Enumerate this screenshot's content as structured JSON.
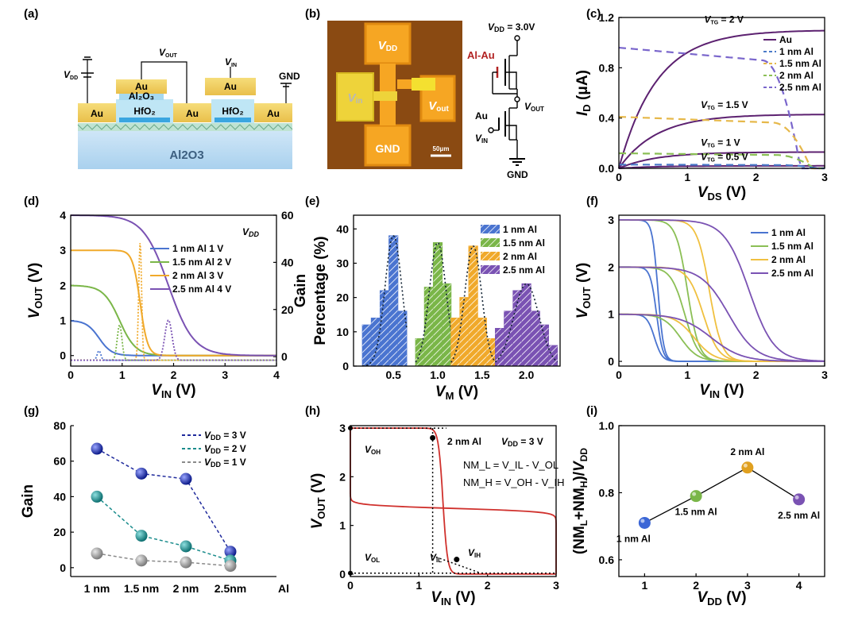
{
  "panel_labels": {
    "a": "(a)",
    "b": "(b)",
    "c": "(c)",
    "d": "(d)",
    "e": "(e)",
    "f": "(f)",
    "g": "(g)",
    "h": "(h)",
    "i": "(i)"
  },
  "schematic_a": {
    "vdd": "V",
    "vdd_sub": "DD",
    "vout": "V",
    "vout_sub": "OUT",
    "vin": "V",
    "vin_sub": "IN",
    "gnd": "GND",
    "au": "Au",
    "al2o3_top": "Al₂O₃",
    "hfo2": "HfO₂",
    "al2o3_sub": "Al2O3"
  },
  "micrograph_b": {
    "vdd": "V",
    "vdd_sub": "DD",
    "vin": "V",
    "vin_sub": "in",
    "vout": "V",
    "vout_sub": "out",
    "gnd": "GND",
    "scale": "50μm"
  },
  "circuit_b": {
    "vdd_label": "V",
    "vdd_sub": "DD",
    "vdd_val": " = 3.0V",
    "alau": "Al-Au",
    "vout": "V",
    "vout_sub": "OUT",
    "au": "Au",
    "vin": "V",
    "vin_sub": "IN",
    "gnd": "GND"
  },
  "chart_data": [
    {
      "id": "c",
      "type": "line",
      "title": "",
      "xlabel": "V",
      "xlabel_sub": "DS",
      "xlabel_unit": " (V)",
      "ylabel": "I",
      "ylabel_sub": "D",
      "ylabel_unit": " (μA)",
      "xlim": [
        0,
        3
      ],
      "ylim": [
        0,
        1.2
      ],
      "xticks": [
        "0",
        "1",
        "2",
        "3"
      ],
      "yticks": [
        "0.0",
        "0.4",
        "0.8",
        "1.2"
      ],
      "legend": [
        "Au",
        "1 nm    Al",
        "1.5 nm Al",
        "2 nm    Al",
        "2.5 nm Al"
      ],
      "annotations": [
        "V_TG = 2 V",
        "V_TG = 1.5 V",
        "V_TG = 1 V",
        "V_TG = 0.5 V"
      ],
      "series": [
        {
          "name": "Au VTG=2 V",
          "style": "solid",
          "color": "#5c2170",
          "sat": 1.1
        },
        {
          "name": "Au VTG=1.5 V",
          "style": "solid",
          "color": "#5c2170",
          "sat": 0.43
        },
        {
          "name": "Au VTG=1 V",
          "style": "solid",
          "color": "#5c2170",
          "sat": 0.13
        },
        {
          "name": "Au VTG=0.5 V",
          "style": "solid",
          "color": "#5c2170",
          "sat": 0.02
        },
        {
          "name": "2.5 nm Al",
          "style": "dashed",
          "color": "#7a66cc",
          "start": 0.96,
          "drop_at": 2.6
        },
        {
          "name": "2 nm Al",
          "style": "dashed",
          "color": "#e6b84a",
          "start": 0.41,
          "drop_at": 2.75
        },
        {
          "name": "1.5 nm Al",
          "style": "dashed",
          "color": "#8bbf55",
          "start": 0.12,
          "drop_at": 2.8
        },
        {
          "name": "1 nm Al",
          "style": "dashed",
          "color": "#4a7ac8",
          "start": 0.03,
          "drop_at": 2.85
        }
      ]
    },
    {
      "id": "d",
      "type": "line",
      "xlabel": "V",
      "xlabel_sub": "IN",
      "xlabel_unit": " (V)",
      "ylabel": "V",
      "ylabel_sub": "OUT",
      "ylabel_unit": " (V)",
      "ylabel_right": "Gain",
      "xlim": [
        0,
        4
      ],
      "ylim": [
        -0.3,
        4
      ],
      "ylim_right": [
        -4,
        60
      ],
      "xticks": [
        "0",
        "1",
        "2",
        "3",
        "4"
      ],
      "yticks": [
        "0",
        "1",
        "2",
        "3",
        "4"
      ],
      "yticks_right": [
        "0",
        "20",
        "40",
        "60"
      ],
      "legend_title": "V_DD",
      "legend": [
        "1 nm    Al  1 V",
        "1.5 nm Al  2 V",
        "2 nm    Al  3 V",
        "2.5 nm Al  4 V"
      ],
      "series": [
        {
          "name": "1 nm Al",
          "vdd": 1,
          "vm": 0.55,
          "k": 18,
          "gain_peak": 4,
          "color": "#4a74d0"
        },
        {
          "name": "1.5 nm Al",
          "vdd": 2,
          "vm": 0.95,
          "k": 14,
          "gain_peak": 15,
          "color": "#7ab648"
        },
        {
          "name": "2 nm Al",
          "vdd": 3,
          "vm": 1.35,
          "k": 30,
          "gain_peak": 50,
          "color": "#f0a92a"
        },
        {
          "name": "2.5 nm Al",
          "vdd": 4,
          "vm": 1.9,
          "k": 9,
          "gain_peak": 17,
          "color": "#7a52b3"
        }
      ]
    },
    {
      "id": "e",
      "type": "bar",
      "xlabel": "V",
      "xlabel_sub": "M",
      "xlabel_unit": " (V)",
      "ylabel": "Percentage (%)",
      "xlim": [
        0.05,
        2.38
      ],
      "ylim": [
        0,
        44
      ],
      "xticks": [
        "0.5",
        "1.0",
        "1.5",
        "2.0"
      ],
      "yticks": [
        "0",
        "10",
        "20",
        "30",
        "40"
      ],
      "legend": [
        "1 nm    Al",
        "1.5 nm Al",
        "2 nm    Al",
        "2.5 nm Al"
      ],
      "series": [
        {
          "name": "1 nm Al",
          "color": "#4a74d0",
          "x": [
            0.2,
            0.3,
            0.4,
            0.5,
            0.6
          ],
          "values": [
            12,
            14,
            22,
            38,
            16
          ]
        },
        {
          "name": "1.5 nm Al",
          "color": "#7ab648",
          "x": [
            0.8,
            0.9,
            1.0,
            1.1,
            1.2
          ],
          "values": [
            8,
            23,
            36,
            24,
            14
          ]
        },
        {
          "name": "2 nm Al",
          "color": "#f0a92a",
          "x": [
            1.2,
            1.3,
            1.4,
            1.5,
            1.6
          ],
          "values": [
            14,
            20,
            35,
            14,
            8
          ]
        },
        {
          "name": "2.5 nm Al",
          "color": "#7a52b3",
          "x": [
            1.7,
            1.8,
            1.9,
            2.0,
            2.1,
            2.2,
            2.3
          ],
          "values": [
            11,
            16,
            22,
            24,
            16,
            12,
            6
          ]
        }
      ]
    },
    {
      "id": "f",
      "type": "line",
      "xlabel": "V",
      "xlabel_sub": "IN",
      "xlabel_unit": " (V)",
      "ylabel": "V",
      "ylabel_sub": "OUT",
      "ylabel_unit": " (V)",
      "xlim": [
        0,
        3
      ],
      "ylim": [
        -0.1,
        3.1
      ],
      "xticks": [
        "0",
        "1",
        "2",
        "3"
      ],
      "yticks": [
        "0",
        "1",
        "2",
        "3"
      ],
      "legend": [
        "1 nm    Al",
        "1.5 nm Al",
        "2 nm    Al",
        "2.5 nm Al"
      ],
      "series": [
        {
          "name": "1 nm Al",
          "color": "#4a74d0",
          "curves": [
            [
              1,
              0.52,
              18
            ],
            [
              2,
              0.55,
              22
            ],
            [
              3,
              0.57,
              24
            ]
          ]
        },
        {
          "name": "1.5 nm Al",
          "color": "#8bbf55",
          "curves": [
            [
              1,
              0.9,
              8
            ],
            [
              2,
              0.96,
              10
            ],
            [
              3,
              1.0,
              12
            ]
          ]
        },
        {
          "name": "2 nm Al",
          "color": "#f0c040",
          "curves": [
            [
              1,
              1.1,
              7
            ],
            [
              2,
              1.23,
              9
            ],
            [
              3,
              1.32,
              11
            ]
          ]
        },
        {
          "name": "2.5 nm Al",
          "color": "#7a52b3",
          "curves": [
            [
              1,
              1.35,
              4.5
            ],
            [
              2,
              1.6,
              5
            ],
            [
              3,
              1.9,
              5.5
            ]
          ]
        }
      ]
    },
    {
      "id": "g",
      "type": "scatter",
      "ylabel": "Gain",
      "categories": [
        "1 nm",
        "1.5 nm",
        "2 nm",
        "2.5nm"
      ],
      "category_suffix": "Al",
      "ylim": [
        -5,
        80
      ],
      "yticks": [
        "0",
        "20",
        "40",
        "60",
        "80"
      ],
      "legend": [
        "V_DD = 3 V",
        "V_DD = 2 V",
        "V_DD = 1 V"
      ],
      "series": [
        {
          "name": "VDD = 3 V",
          "color": "#1f2a9c",
          "line": "#1f2a9c",
          "values": [
            67,
            53,
            50,
            9
          ]
        },
        {
          "name": "VDD = 2 V",
          "color": "#1a8c8c",
          "line": "#1a8c8c",
          "values": [
            40,
            18,
            12,
            4
          ]
        },
        {
          "name": "VDD = 1 V",
          "color": "#8a8a8a",
          "line": "#8a8a8a",
          "values": [
            8,
            4,
            3,
            1
          ]
        }
      ]
    },
    {
      "id": "h",
      "type": "line",
      "xlabel": "V",
      "xlabel_sub": "IN",
      "xlabel_unit": " (V)",
      "ylabel": "V",
      "ylabel_sub": "OUT",
      "ylabel_unit": " (V)",
      "xlim": [
        0,
        3
      ],
      "ylim": [
        -0.05,
        3.05
      ],
      "xticks": [
        "0",
        "1",
        "2",
        "3"
      ],
      "yticks": [
        "0",
        "1",
        "2",
        "3"
      ],
      "annotation_main": "2 nm Al",
      "annotation_vdd": "V_DD = 3 V",
      "eq1": "NM_L = V_IL - V_OL",
      "eq2": "NM_H = V_OH - V_IH",
      "labels": [
        "V_OH",
        "V_OL",
        "V_IL",
        "V_IH"
      ],
      "points": [
        [
          1.2,
          2.8
        ],
        [
          1.55,
          0.3
        ]
      ],
      "curves": {
        "vm": 1.35,
        "k": 30
      }
    },
    {
      "id": "i",
      "type": "scatter",
      "xlabel": "V",
      "xlabel_sub": "DD",
      "xlabel_unit": " (V)",
      "ylabel": "(NM_L+NM_H)/V_DD",
      "xlim": [
        0.5,
        4.5
      ],
      "ylim": [
        0.55,
        1.0
      ],
      "xticks": [
        "1",
        "2",
        "3",
        "4"
      ],
      "yticks": [
        "0.6",
        "0.8",
        "1.0"
      ],
      "points": [
        {
          "x": 1,
          "y": 0.71,
          "label": "1 nm Al",
          "color": "#3b66d6"
        },
        {
          "x": 2,
          "y": 0.79,
          "label": "1.5 nm Al",
          "color": "#7ab648"
        },
        {
          "x": 3,
          "y": 0.875,
          "label": "2 nm Al",
          "color": "#e0a020"
        },
        {
          "x": 4,
          "y": 0.78,
          "label": "2.5 nm Al",
          "color": "#7a52b3"
        }
      ]
    }
  ]
}
